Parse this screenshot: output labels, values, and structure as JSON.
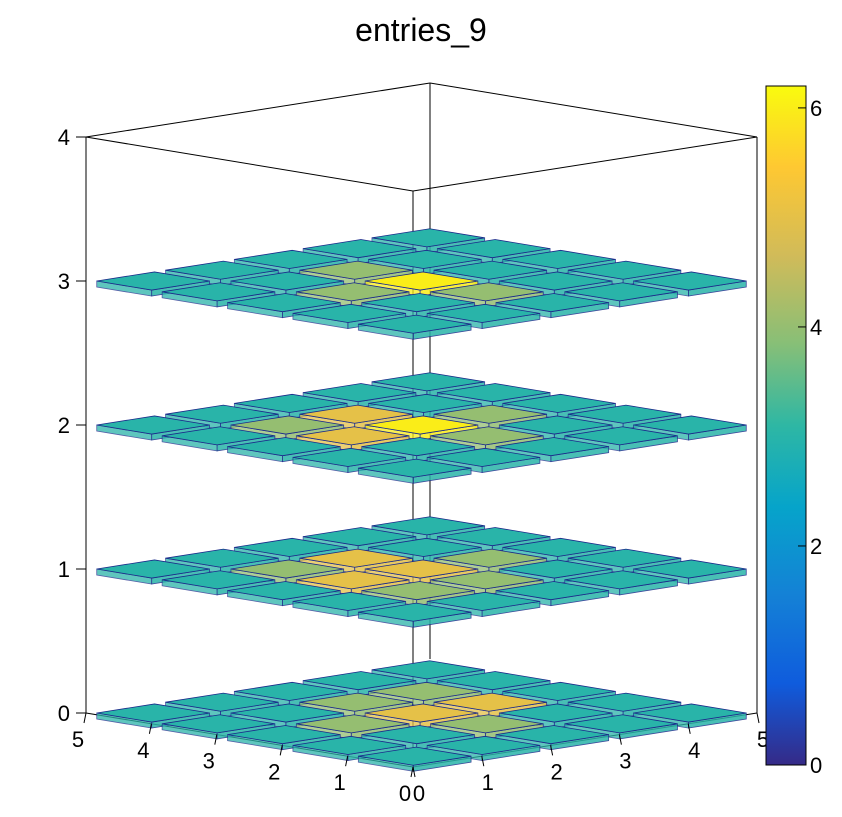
{
  "chart_data": {
    "type": "3d-box",
    "title": "entries_9",
    "x_ticks": [
      "0",
      "1",
      "2",
      "3",
      "4",
      "5"
    ],
    "y_ticks": [
      "0",
      "1",
      "2",
      "3",
      "4",
      "5"
    ],
    "z_ticks": [
      "0",
      "1",
      "2",
      "3",
      "4"
    ],
    "xlim": [
      0,
      5
    ],
    "ylim": [
      0,
      5
    ],
    "zlim": [
      0,
      4
    ],
    "grid_size": 5,
    "layers": [
      0,
      1,
      2,
      3
    ],
    "colorbar": {
      "min": 0,
      "max": 6.2,
      "ticks": [
        "0",
        "2",
        "4",
        "6"
      ]
    },
    "bins": [
      {
        "z": 0,
        "cells": [
          [
            3,
            3,
            3,
            3,
            3
          ],
          [
            3,
            3,
            4,
            3,
            3
          ],
          [
            3,
            4,
            5,
            4,
            3
          ],
          [
            3,
            3,
            5,
            4,
            3
          ],
          [
            3,
            3,
            3,
            3,
            3
          ]
        ]
      },
      {
        "z": 1,
        "cells": [
          [
            3,
            3,
            3,
            3,
            3
          ],
          [
            3,
            4,
            5,
            4,
            3
          ],
          [
            3,
            4,
            5,
            5,
            3
          ],
          [
            3,
            3,
            4,
            3,
            3
          ],
          [
            3,
            3,
            3,
            3,
            3
          ]
        ]
      },
      {
        "z": 2,
        "cells": [
          [
            3,
            3,
            3,
            3,
            3
          ],
          [
            3,
            3,
            5,
            4,
            3
          ],
          [
            3,
            4,
            6,
            5,
            3
          ],
          [
            3,
            3,
            4,
            3,
            3
          ],
          [
            3,
            3,
            3,
            3,
            3
          ]
        ]
      },
      {
        "z": 3,
        "cells": [
          [
            3,
            3,
            3,
            3,
            3
          ],
          [
            3,
            3,
            4,
            3,
            3
          ],
          [
            3,
            4,
            6,
            4,
            3
          ],
          [
            3,
            3,
            3,
            3,
            3
          ],
          [
            3,
            3,
            3,
            3,
            3
          ]
        ]
      }
    ]
  }
}
